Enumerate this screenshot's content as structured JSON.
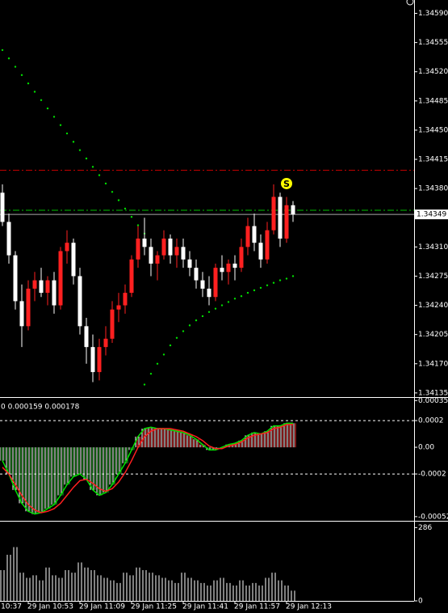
{
  "chart_data": [
    {
      "type": "candlestick",
      "xlim": [
        -0.375,
        63.75
      ],
      "ylim": [
        1.34131,
        1.34606
      ],
      "yticks": [
        {
          "value": 1.3459,
          "label": "1.34590"
        },
        {
          "value": 1.34555,
          "label": "1.34555"
        },
        {
          "value": 1.3452,
          "label": "1.34520"
        },
        {
          "value": 1.34485,
          "label": "1.34485"
        },
        {
          "value": 1.3445,
          "label": "1.34450"
        },
        {
          "value": 1.34415,
          "label": "1.34415"
        },
        {
          "value": 1.3438,
          "label": "1.34380"
        },
        {
          "value": 1.3431,
          "label": "1.34310"
        },
        {
          "value": 1.34275,
          "label": "1.34275"
        },
        {
          "value": 1.3424,
          "label": "1.34240"
        },
        {
          "value": 1.34205,
          "label": "1.34205"
        },
        {
          "value": 1.3417,
          "label": "1.34170"
        },
        {
          "value": 1.34135,
          "label": "1.34135"
        }
      ],
      "up_color": "#ff2020",
      "down_color": "#ffffff",
      "open": [
        1.34375,
        1.3434,
        1.343,
        1.34245,
        1.34215,
        1.3426,
        1.3427,
        1.34255,
        1.3427,
        1.3424,
        1.34305,
        1.34315,
        1.34275,
        1.34215,
        1.3419,
        1.3416,
        1.3419,
        1.342,
        1.34235,
        1.3424,
        1.34255,
        1.34295,
        1.3432,
        1.3431,
        1.3429,
        1.343,
        1.3432,
        1.343,
        1.3431,
        1.34295,
        1.34285,
        1.3427,
        1.3426,
        1.3425,
        1.34285,
        1.3428,
        1.3429,
        1.34285,
        1.3431,
        1.34335,
        1.34315,
        1.34295,
        1.3433,
        1.3437,
        1.3432,
        1.3436
      ],
      "high": [
        1.34385,
        1.3435,
        1.34305,
        1.34265,
        1.3427,
        1.3428,
        1.34285,
        1.34275,
        1.3428,
        1.3431,
        1.3433,
        1.3432,
        1.34285,
        1.34225,
        1.34205,
        1.342,
        1.34215,
        1.34245,
        1.34255,
        1.34265,
        1.343,
        1.34335,
        1.34345,
        1.3432,
        1.34305,
        1.3433,
        1.34325,
        1.3432,
        1.3432,
        1.34305,
        1.34295,
        1.3428,
        1.34275,
        1.3429,
        1.343,
        1.34295,
        1.343,
        1.3432,
        1.34345,
        1.3435,
        1.34325,
        1.3434,
        1.34385,
        1.34375,
        1.3437,
        1.34365
      ],
      "low": [
        1.34335,
        1.3429,
        1.34235,
        1.3419,
        1.3421,
        1.34245,
        1.3425,
        1.3424,
        1.3423,
        1.34235,
        1.3429,
        1.34265,
        1.34205,
        1.3417,
        1.34148,
        1.3415,
        1.3418,
        1.34195,
        1.3422,
        1.3423,
        1.3425,
        1.34285,
        1.343,
        1.34275,
        1.3427,
        1.34295,
        1.3429,
        1.34285,
        1.34285,
        1.34275,
        1.3426,
        1.3425,
        1.3424,
        1.34245,
        1.3427,
        1.34265,
        1.3427,
        1.3428,
        1.343,
        1.34305,
        1.34285,
        1.3429,
        1.34325,
        1.3431,
        1.34315,
        1.3434
      ],
      "close": [
        1.3434,
        1.343,
        1.34245,
        1.34215,
        1.3426,
        1.3427,
        1.34255,
        1.3427,
        1.3424,
        1.34305,
        1.34315,
        1.34275,
        1.34215,
        1.3419,
        1.3416,
        1.3419,
        1.342,
        1.34235,
        1.3424,
        1.34255,
        1.34295,
        1.3432,
        1.3431,
        1.3429,
        1.343,
        1.3432,
        1.343,
        1.3431,
        1.34295,
        1.34285,
        1.3427,
        1.3426,
        1.3425,
        1.34285,
        1.3428,
        1.3429,
        1.34285,
        1.3431,
        1.34335,
        1.34315,
        1.34295,
        1.3433,
        1.3437,
        1.3432,
        1.3436,
        1.34349
      ],
      "series": [
        {
          "color": "#00e000",
          "values": [
            1.34546,
            1.34536,
            1.34526,
            1.34516,
            1.34506,
            1.34496,
            1.34486,
            1.34476,
            1.34466,
            1.34456,
            1.34446,
            1.34436,
            1.34426,
            1.34416,
            1.34406,
            1.34396,
            1.34386,
            1.34376,
            1.34366,
            1.34356,
            1.34346,
            1.34336,
            1.34326,
            null,
            null,
            null,
            null,
            null,
            null,
            null,
            null,
            null,
            null,
            null,
            null,
            null,
            null,
            null,
            null,
            null,
            null,
            null,
            null,
            null,
            null,
            null
          ]
        },
        {
          "color": "#00e000",
          "values": [
            null,
            null,
            null,
            null,
            null,
            null,
            null,
            null,
            null,
            null,
            null,
            null,
            null,
            null,
            null,
            null,
            null,
            null,
            null,
            null,
            null,
            null,
            1.34145,
            1.34158,
            1.3417,
            1.34181,
            1.34192,
            1.34201,
            1.34209,
            1.34216,
            1.34222,
            1.34227,
            1.34232,
            1.34236,
            1.3424,
            1.34244,
            1.34248,
            1.34251,
            1.34255,
            1.34258,
            1.34261,
            1.34264,
            1.34267,
            1.3427,
            1.34272,
            1.34275
          ]
        }
      ],
      "levels": [
        {
          "value": 1.34402,
          "color": "#c00000"
        },
        {
          "value": 1.34354,
          "color": "#00c000"
        }
      ],
      "last_price": 1.34349,
      "marker": {
        "label": "S",
        "x": 44,
        "value": 1.34386,
        "color": "#ffff00"
      }
    },
    {
      "type": "macd",
      "xlim": [
        -0.375,
        63.75
      ],
      "label": "0 0.000159 0.000178",
      "ylim": [
        -0.000545,
        0.000364
      ],
      "yticks": [
        0.00035,
        0.0002,
        {
          "value": 0,
          "label": "0.00"
        },
        -0.0002,
        -0.00052
      ],
      "dashed_levels": [
        0.0002,
        -0.0002
      ],
      "positive_color": "#ff3030",
      "negative_color": "#20b020",
      "line_color": "#00e000",
      "signal_color": "#ff2020",
      "values": [
        -0.0001,
        -0.0002,
        -0.00032,
        -0.00042,
        -0.00048,
        -0.0005,
        -0.00049,
        -0.00046,
        -0.00043,
        -0.00036,
        -0.00028,
        -0.00022,
        -0.0002,
        -0.00024,
        -0.00032,
        -0.00036,
        -0.00034,
        -0.00028,
        -0.0002,
        -0.00012,
        -2e-05,
        8e-05,
        0.00014,
        0.00015,
        0.00014,
        0.00014,
        0.00013,
        0.00012,
        0.00011,
        9e-05,
        6e-05,
        2e-05,
        -2e-05,
        -2e-05,
        0,
        2e-05,
        3e-05,
        5e-05,
        9e-05,
        0.00011,
        0.0001,
        0.00012,
        0.00016,
        0.00016,
        0.00018,
        0.00018
      ],
      "signal": [
        -0.00015,
        -0.0002,
        -0.00028,
        -0.00036,
        -0.00043,
        -0.00047,
        -0.00049,
        -0.00048,
        -0.00046,
        -0.00042,
        -0.00036,
        -0.0003,
        -0.00025,
        -0.00024,
        -0.00027,
        -0.00031,
        -0.00033,
        -0.00031,
        -0.00026,
        -0.00019,
        -0.0001,
        0,
        8e-05,
        0.00012,
        0.00014,
        0.00014,
        0.00014,
        0.00013,
        0.00012,
        0.0001,
        8e-05,
        5e-05,
        1e-05,
        -1e-05,
        -1e-05,
        1e-05,
        2e-05,
        4e-05,
        7e-05,
        9e-05,
        0.0001,
        0.00011,
        0.00014,
        0.00015,
        0.00017,
        0.00017
      ]
    },
    {
      "type": "bar",
      "xlim": [
        -0.375,
        63.75
      ],
      "ylim": [
        0,
        303
      ],
      "yticks": [
        286,
        0
      ],
      "color": "#ffffff",
      "values": [
        120,
        180,
        210,
        110,
        90,
        100,
        80,
        130,
        100,
        90,
        120,
        110,
        150,
        130,
        120,
        100,
        90,
        80,
        70,
        110,
        100,
        130,
        120,
        110,
        100,
        90,
        80,
        70,
        110,
        90,
        80,
        70,
        60,
        80,
        90,
        70,
        60,
        80,
        60,
        70,
        60,
        90,
        110,
        80,
        60,
        40
      ],
      "xticks": [
        {
          "value": -4,
          "label": "10:37"
        },
        {
          "value": 4,
          "label": "29 Jan 10:53"
        },
        {
          "value": 12,
          "label": "29 Jan 11:09"
        },
        {
          "value": 20,
          "label": "29 Jan 11:25"
        },
        {
          "value": 28,
          "label": "29 Jan 11:41"
        },
        {
          "value": 36,
          "label": "29 Jan 11:57"
        },
        {
          "value": 44,
          "label": "29 Jan 12:13"
        }
      ]
    }
  ]
}
